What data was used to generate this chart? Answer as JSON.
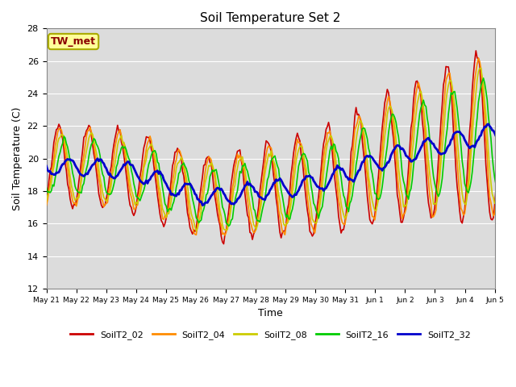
{
  "title": "Soil Temperature Set 2",
  "ylabel": "Soil Temperature (C)",
  "xlabel": "Time",
  "ylim": [
    12,
    28
  ],
  "annotation": "TW_met",
  "annotation_color": "#8B0000",
  "annotation_bg": "#FFFF99",
  "bg_color": "#DCDCDC",
  "series": {
    "SoilT2_02": {
      "color": "#CC0000",
      "linewidth": 1.2,
      "zorder": 3
    },
    "SoilT2_04": {
      "color": "#FF8C00",
      "linewidth": 1.2,
      "zorder": 4
    },
    "SoilT2_08": {
      "color": "#CCCC00",
      "linewidth": 1.2,
      "zorder": 5
    },
    "SoilT2_16": {
      "color": "#00CC00",
      "linewidth": 1.2,
      "zorder": 6
    },
    "SoilT2_32": {
      "color": "#0000CC",
      "linewidth": 2.0,
      "zorder": 7
    }
  },
  "tick_labels": [
    "May 21",
    "May 22",
    "May 23",
    "May 24",
    "May 25",
    "May 26",
    "May 27",
    "May 28",
    "May 29",
    "May 30",
    "May 31",
    "Jun 1",
    "Jun 2",
    "Jun 3",
    "Jun 4",
    "Jun 5"
  ],
  "grid_color": "#FFFFFF",
  "yticks": [
    12,
    14,
    16,
    18,
    20,
    22,
    24,
    26,
    28
  ]
}
